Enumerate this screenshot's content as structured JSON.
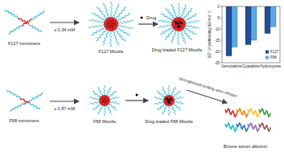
{
  "diagram": {
    "nodes": [
      {
        "label": "F127 monomers"
      },
      {
        "label": "F127 Micelle"
      },
      {
        "label": "Drug loaded F127 Micelle"
      },
      {
        "label": "F68 monomers"
      },
      {
        "label": "F68 Micelle"
      },
      {
        "label": "Drug loaded F68 Micelle"
      },
      {
        "label": "Bovine serum albumin"
      }
    ],
    "edges": [
      {
        "label": "≥ 0.34 mM"
      },
      {
        "label": "Drug"
      },
      {
        "label": "≥ 0.87 mM"
      },
      {
        "label": "Strengthened binding upon release"
      }
    ]
  },
  "chart_data": {
    "type": "bar",
    "y_label": "ΔG° of partitioning (kJ mol⁻¹)",
    "categories": [
      "Gemcitabine",
      "Cytarabine",
      "Hydroxyurea"
    ],
    "series": [
      {
        "name": "F127",
        "color": "#1f4e9a",
        "values": [
          -22,
          -17,
          -12
        ]
      },
      {
        "name": "F68",
        "color": "#5aa9e6",
        "values": [
          -18,
          -15,
          -9
        ]
      }
    ],
    "ylim": [
      -25,
      0
    ],
    "yticks": [
      -25,
      -20,
      -15,
      -10,
      -5,
      0
    ],
    "legend": "bottom right"
  }
}
